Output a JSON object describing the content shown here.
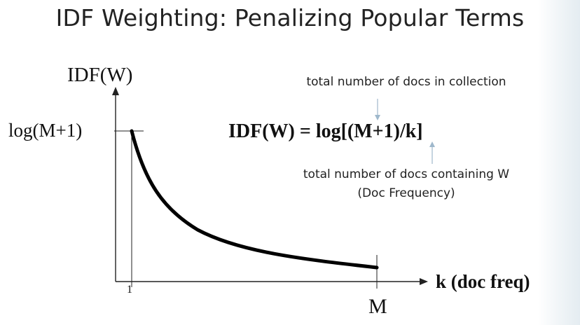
{
  "slide": {
    "title": "IDF Weighting: Penalizing Popular Terms"
  },
  "formula": {
    "text": "IDF(W) = log[(M+1)/k]",
    "annotation_top": "total number of docs in collection",
    "annotation_bottom_line1": "total number of docs containing W",
    "annotation_bottom_line2": "(Doc Frequency)",
    "arrow_color": "#9fb8cc"
  },
  "chart_data": {
    "type": "line",
    "title": "",
    "ylabel": "IDF(W)",
    "xlabel": "k (doc freq)",
    "y_max_label": "log(M+1)",
    "x_ticks": [
      "1",
      "M"
    ],
    "curve": "IDF(W) = log[(M+1)/k]",
    "series": [
      {
        "color": "#000000"
      }
    ]
  }
}
